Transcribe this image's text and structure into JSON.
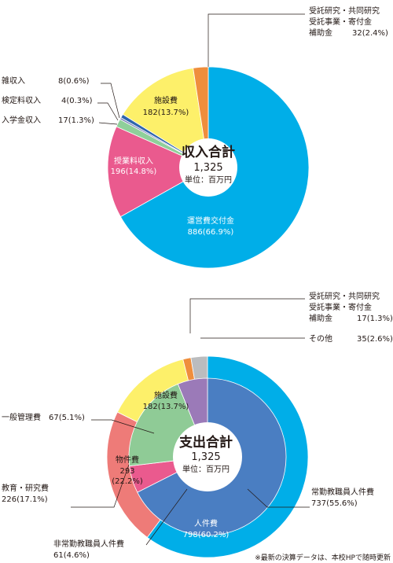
{
  "chart_data": [
    {
      "type": "pie",
      "center_title": "収入合計",
      "center_value": "1,325",
      "center_unit": "単位：百万円",
      "slices": [
        {
          "name": "運営費交付金",
          "value": 886,
          "label": "886(66.9%)",
          "color": "#00aee8"
        },
        {
          "name": "授業料収入",
          "value": 196,
          "label": "196(14.8%)",
          "color": "#ea5a8e"
        },
        {
          "name": "入学金収入",
          "value": 17,
          "label": "17(1.3%)",
          "color": "#8fcf9a"
        },
        {
          "name": "検定料収入",
          "value": 4,
          "label": "4(0.3%)",
          "color": "#7a7fbb"
        },
        {
          "name": "雑収入",
          "value": 8,
          "label": "8(0.6%)",
          "color": "#2f65ad"
        },
        {
          "name": "施設費",
          "value": 182,
          "label": "182(13.7%)",
          "color": "#fdf06a"
        },
        {
          "name_lines": [
            "受託研究・共同研究",
            "受託事業・寄付金",
            "補助金"
          ],
          "value": 32,
          "label": "32(2.4%)",
          "color": "#ef8e3c"
        }
      ]
    },
    {
      "type": "pie",
      "center_title": "支出合計",
      "center_value": "1,325",
      "center_unit": "単位：百万円",
      "outer_slices": [
        {
          "name": "人件費",
          "value": 798,
          "label": "798(60.2%)",
          "color": "#00aee8"
        },
        {
          "name": "物件費",
          "value": 293,
          "label_lines": [
            "293",
            "(22.2%)"
          ],
          "color": "#ee7b78"
        },
        {
          "name": "施設費",
          "value": 182,
          "label": "182(13.7%)",
          "color": "#fdf06a"
        },
        {
          "name_lines": [
            "受託研究・共同研究",
            "受託事業・寄付金",
            "補助金"
          ],
          "value": 17,
          "label": "17(1.3%)",
          "color": "#ef8e3c"
        },
        {
          "name": "その他",
          "value": 35,
          "label": "35(2.6%)",
          "color": "#bbbcbe"
        }
      ],
      "inner_slices": [
        {
          "name": "常勤教職員人件費",
          "value": 737,
          "label": "737(55.6%)",
          "color": "#4a7ec2"
        },
        {
          "name": "非常勤教職員人件費",
          "value": 61,
          "label": "61(4.6%)",
          "color": "#ea5a8e"
        },
        {
          "name": "教育・研究費",
          "value": 226,
          "label": "226(17.1%)",
          "color": "#8fcb96"
        },
        {
          "name": "一般管理費",
          "value": 67,
          "label": "67(5.1%)",
          "color": "#9b7ab8"
        }
      ]
    }
  ],
  "footnote": "※最新の決算データは、本校HPで随時更新"
}
